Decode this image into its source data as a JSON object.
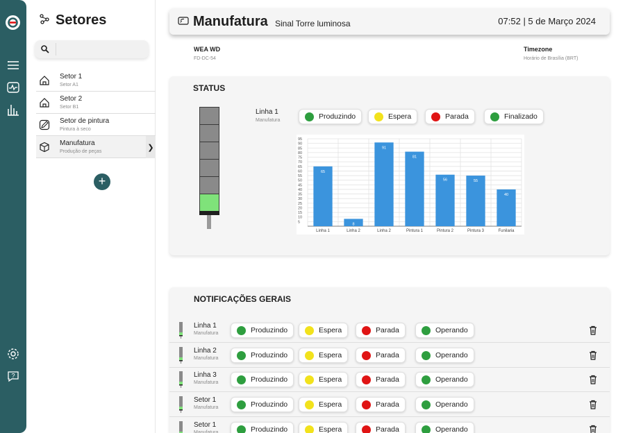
{
  "sidebar": {
    "title": "Setores",
    "search": {
      "value": "",
      "placeholder": ""
    },
    "items": [
      {
        "name": "Setor 1",
        "sub": "Setor A1",
        "icon": "house-icon"
      },
      {
        "name": "Setor 2",
        "sub": "Setor B1",
        "icon": "house-icon"
      },
      {
        "name": "Setor de pintura",
        "sub": "Pintura à seco",
        "icon": "brush-icon"
      },
      {
        "name": "Manufatura",
        "sub": "Produção de peças",
        "icon": "cube-icon",
        "active": true
      }
    ],
    "add_label": "+"
  },
  "header": {
    "title": "Manufatura",
    "subtitle": "Sinal Torre luminosa",
    "datetime": "07:52 | 5 de Março 2024"
  },
  "info": {
    "device_label": "WEA WD",
    "device_value": "FD-DC-54",
    "timezone_label": "Timezone",
    "timezone_value": "Horário de Brasília (BRT)"
  },
  "status": {
    "title": "STATUS",
    "line_name": "Linha 1",
    "line_sub": "Manufatura",
    "tower_lit_segment": 6,
    "legend": [
      {
        "label": "Produzindo",
        "color": "#2e9e3f"
      },
      {
        "label": "Espera",
        "color": "#f2e21c"
      },
      {
        "label": "Parada",
        "color": "#e01414"
      },
      {
        "label": "Finalizado",
        "color": "#2e9e3f"
      }
    ]
  },
  "chart_data": {
    "type": "bar",
    "categories": [
      "Linha 1",
      "Linha 2",
      "Linha 2",
      "Pintura 1",
      "Pintura 2",
      "Pintura 3",
      "Funilaria"
    ],
    "values": [
      65,
      8,
      91,
      81,
      56,
      55,
      40
    ],
    "data_labels": [
      "65",
      "8",
      "91",
      "81",
      "56",
      "55",
      "40"
    ],
    "yticks": [
      5,
      10,
      15,
      20,
      25,
      30,
      35,
      40,
      45,
      50,
      55,
      60,
      65,
      70,
      75,
      80,
      85,
      90,
      95
    ],
    "ylim": [
      0,
      95
    ],
    "bar_color": "#3b94dd",
    "grid": true
  },
  "notifications": {
    "title": "NOTIFICAÇÕES GERAIS",
    "rows": [
      {
        "name": "Linha 1",
        "sub": "Manufatura",
        "s1": "Produzindo",
        "s2": "Espera",
        "s3": "Parada",
        "s4": "Operando"
      },
      {
        "name": "Linha 2",
        "sub": "Manufatura",
        "s1": "Produzindo",
        "s2": "Espera",
        "s3": "Parada",
        "s4": "Operando"
      },
      {
        "name": "Linha 3",
        "sub": "Manufatura",
        "s1": "Produzindo",
        "s2": "Espera",
        "s3": "Parada",
        "s4": "Operando"
      },
      {
        "name": "Setor 1",
        "sub": "Manufatura",
        "s1": "Produzindo",
        "s2": "Espera",
        "s3": "Parada",
        "s4": "Operando"
      },
      {
        "name": "Setor 1",
        "sub": "Manufatura",
        "s1": "Produzindo",
        "s2": "Espera",
        "s3": "Parada",
        "s4": "Operando"
      }
    ],
    "colors": {
      "s1": "#2e9e3f",
      "s2": "#f2e21c",
      "s3": "#e01414",
      "s4": "#2e9e3f"
    }
  },
  "colors": {
    "rail": "#2b5e63",
    "accent": "#2b5e63"
  }
}
